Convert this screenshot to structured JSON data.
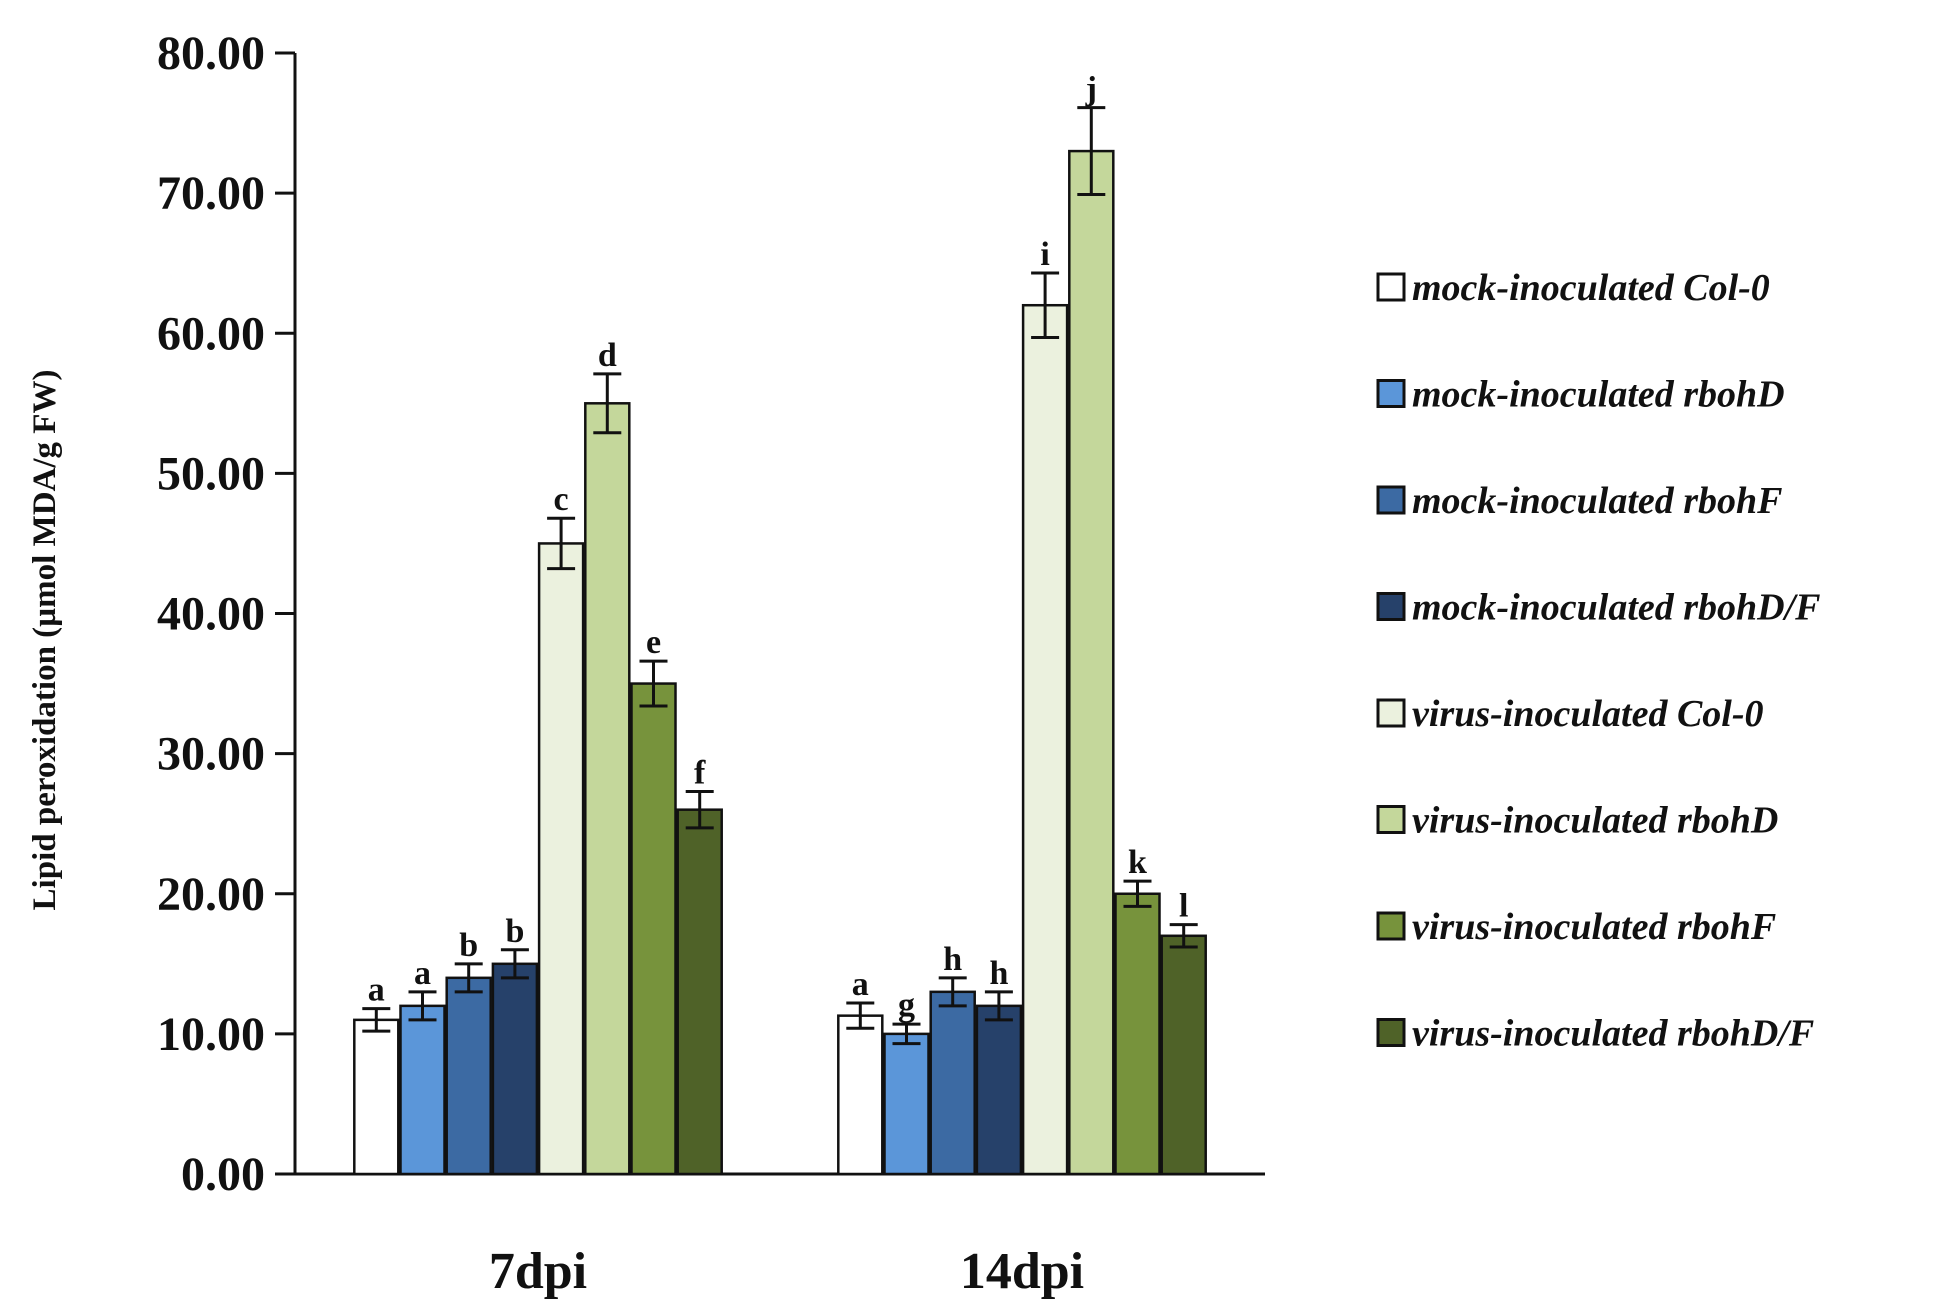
{
  "chart_data": {
    "type": "bar",
    "title": "",
    "xlabel": "",
    "ylabel": "Lipid peroxidation (µmol MDA/g FW)",
    "ylim": [
      0,
      80
    ],
    "ytick_step": 10,
    "ytick_labels": [
      "0.00",
      "10.00",
      "20.00",
      "30.00",
      "40.00",
      "50.00",
      "60.00",
      "70.00",
      "80.00"
    ],
    "categories": [
      "7dpi",
      "14dpi"
    ],
    "legend_position": "right",
    "grid": false,
    "series": [
      {
        "name": "mock-inoculated Col-0",
        "color": "#ffffff",
        "values": [
          11,
          11.3
        ],
        "errors": [
          0.8,
          0.9
        ],
        "labels": [
          "a",
          "a"
        ]
      },
      {
        "name": "mock-inoculated rbohD",
        "color": "#5b96d9",
        "values": [
          12,
          10
        ],
        "errors": [
          1.0,
          0.7
        ],
        "labels": [
          "a",
          "g"
        ]
      },
      {
        "name": "mock-inoculated rbohF",
        "color": "#3c6aa3",
        "values": [
          14,
          13
        ],
        "errors": [
          1.0,
          1.0
        ],
        "labels": [
          "b",
          "h"
        ]
      },
      {
        "name": "mock-inoculated rbohD/F",
        "color": "#26416a",
        "values": [
          15,
          12
        ],
        "errors": [
          1.0,
          1.0
        ],
        "labels": [
          "b",
          "h"
        ]
      },
      {
        "name": "virus-inoculated Col-0",
        "color": "#ebf1de",
        "values": [
          45,
          62
        ],
        "errors": [
          1.8,
          2.3
        ],
        "labels": [
          "c",
          "i"
        ]
      },
      {
        "name": "virus-inoculated rbohD",
        "color": "#c4d79b",
        "values": [
          55,
          73
        ],
        "errors": [
          2.1,
          3.1
        ],
        "labels": [
          "d",
          "j"
        ]
      },
      {
        "name": "virus-inoculated rbohF",
        "color": "#77933c",
        "values": [
          35,
          20
        ],
        "errors": [
          1.6,
          0.9
        ],
        "labels": [
          "e",
          "k"
        ]
      },
      {
        "name": "virus-inoculated rbohD/F",
        "color": "#4f6228",
        "values": [
          26,
          17
        ],
        "errors": [
          1.3,
          0.8
        ],
        "labels": [
          "f",
          "l"
        ]
      }
    ]
  }
}
